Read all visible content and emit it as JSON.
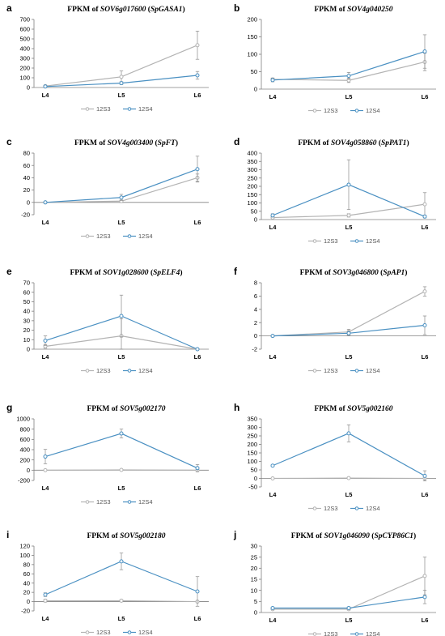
{
  "colors": {
    "s3": "#b3b3b3",
    "s4": "#4a90c2",
    "axis": "#808080",
    "error": "#8c8c8c"
  },
  "chart_data": [
    {
      "panel": "a",
      "type": "line",
      "title_prefix": "FPKM of ",
      "gene": "SOV6g017600",
      "alias": "SpGASA1",
      "categories": [
        "L4",
        "L5",
        "L6"
      ],
      "ylim": [
        0,
        700
      ],
      "yticks": [
        0,
        100,
        200,
        300,
        400,
        500,
        600,
        700
      ],
      "series": [
        {
          "name": "12S3",
          "values": [
            15,
            110,
            435
          ],
          "errors": [
            8,
            60,
            145
          ]
        },
        {
          "name": "12S4",
          "values": [
            10,
            45,
            125
          ],
          "errors": [
            5,
            15,
            40
          ]
        }
      ]
    },
    {
      "panel": "b",
      "type": "line",
      "title_prefix": "FPKM of ",
      "gene": "SOV4g040250",
      "alias": "",
      "categories": [
        "L4",
        "L5",
        "L6"
      ],
      "ylim": [
        0,
        200
      ],
      "yticks": [
        0,
        50,
        100,
        150,
        200
      ],
      "series": [
        {
          "name": "12S3",
          "values": [
            28,
            25,
            78
          ],
          "errors": [
            4,
            6,
            25
          ]
        },
        {
          "name": "12S4",
          "values": [
            26,
            38,
            108
          ],
          "errors": [
            5,
            10,
            48
          ]
        }
      ]
    },
    {
      "panel": "c",
      "type": "line",
      "title_prefix": "FPKM of ",
      "gene": "SOV4g003400",
      "alias": "SpFT",
      "categories": [
        "L4",
        "L5",
        "L6"
      ],
      "ylim": [
        -20,
        80
      ],
      "yticks": [
        -20,
        0,
        20,
        40,
        60,
        80
      ],
      "series": [
        {
          "name": "12S3",
          "values": [
            0,
            2,
            40
          ],
          "errors": [
            0,
            2,
            6
          ]
        },
        {
          "name": "12S4",
          "values": [
            0,
            8,
            54
          ],
          "errors": [
            0,
            5,
            21
          ]
        }
      ]
    },
    {
      "panel": "d",
      "type": "line",
      "title_prefix": "FPKM of ",
      "gene": "SOV4g058860",
      "alias": "SpPAT1",
      "categories": [
        "L4",
        "L5",
        "L6"
      ],
      "ylim": [
        0,
        400
      ],
      "yticks": [
        0,
        50,
        100,
        150,
        200,
        250,
        300,
        350,
        400
      ],
      "series": [
        {
          "name": "12S3",
          "values": [
            12,
            25,
            92
          ],
          "errors": [
            5,
            10,
            70
          ]
        },
        {
          "name": "12S4",
          "values": [
            25,
            210,
            18
          ],
          "errors": [
            10,
            150,
            8
          ]
        }
      ]
    },
    {
      "panel": "e",
      "type": "line",
      "title_prefix": "FPKM of ",
      "gene": "SOV1g028600",
      "alias": "SpELF4",
      "categories": [
        "L4",
        "L5",
        "L6"
      ],
      "ylim": [
        0,
        70
      ],
      "yticks": [
        0,
        10,
        20,
        30,
        40,
        50,
        60,
        70
      ],
      "series": [
        {
          "name": "12S3",
          "values": [
            3,
            14,
            0
          ],
          "errors": [
            2,
            18,
            0
          ]
        },
        {
          "name": "12S4",
          "values": [
            9,
            35,
            0
          ],
          "errors": [
            5,
            22,
            0
          ]
        }
      ]
    },
    {
      "panel": "f",
      "type": "line",
      "title_prefix": "FPKM of ",
      "gene": "SOV3g046800",
      "alias": "SpAP1",
      "categories": [
        "L4",
        "L5",
        "L6"
      ],
      "ylim": [
        -2,
        8
      ],
      "yticks": [
        -2,
        0,
        2,
        4,
        6,
        8
      ],
      "series": [
        {
          "name": "12S3",
          "values": [
            0,
            0.6,
            6.7
          ],
          "errors": [
            0,
            0.4,
            0.7
          ]
        },
        {
          "name": "12S4",
          "values": [
            0,
            0.4,
            1.6
          ],
          "errors": [
            0,
            0.3,
            1.4
          ]
        }
      ]
    },
    {
      "panel": "g",
      "type": "line",
      "title_prefix": "FPKM of ",
      "gene": "SOV5g002170",
      "alias": "",
      "categories": [
        "L4",
        "L5",
        "L6"
      ],
      "ylim": [
        -200,
        1000
      ],
      "yticks": [
        -200,
        0,
        200,
        400,
        600,
        800,
        1000
      ],
      "series": [
        {
          "name": "12S3",
          "values": [
            0,
            5,
            0
          ],
          "errors": [
            0,
            5,
            0
          ]
        },
        {
          "name": "12S4",
          "values": [
            265,
            715,
            40
          ],
          "errors": [
            140,
            85,
            70
          ]
        }
      ]
    },
    {
      "panel": "h",
      "type": "line",
      "title_prefix": "FPKM of ",
      "gene": "SOV5g002160",
      "alias": "",
      "categories": [
        "L4",
        "L5",
        "L6"
      ],
      "ylim": [
        -50,
        350
      ],
      "yticks": [
        -50,
        0,
        50,
        100,
        150,
        200,
        250,
        300,
        350
      ],
      "series": [
        {
          "name": "12S3",
          "values": [
            0,
            2,
            0
          ],
          "errors": [
            0,
            2,
            0
          ]
        },
        {
          "name": "12S4",
          "values": [
            75,
            265,
            15
          ],
          "errors": [
            5,
            50,
            30
          ]
        }
      ]
    },
    {
      "panel": "i",
      "type": "line",
      "title_prefix": "FPKM of ",
      "gene": "SOV5g002180",
      "alias": "",
      "categories": [
        "L4",
        "L5",
        "L6"
      ],
      "ylim": [
        -20,
        120
      ],
      "yticks": [
        -20,
        0,
        20,
        40,
        60,
        80,
        100,
        120
      ],
      "series": [
        {
          "name": "12S3",
          "values": [
            2,
            2,
            0
          ],
          "errors": [
            3,
            2,
            0
          ]
        },
        {
          "name": "12S4",
          "values": [
            15,
            87,
            22
          ],
          "errors": [
            4,
            18,
            32
          ]
        }
      ]
    },
    {
      "panel": "j",
      "type": "line",
      "title_prefix": "FPKM of ",
      "gene": "SOV1g046090",
      "alias": "SpCYP86C1",
      "categories": [
        "L4",
        "L5",
        "L6"
      ],
      "ylim": [
        0,
        30
      ],
      "yticks": [
        0,
        5,
        10,
        15,
        20,
        25,
        30
      ],
      "series": [
        {
          "name": "12S3",
          "values": [
            1.5,
            1.5,
            16.5
          ],
          "errors": [
            0.3,
            0.4,
            8.5
          ]
        },
        {
          "name": "12S4",
          "values": [
            2,
            2,
            7
          ],
          "errors": [
            0.3,
            0.5,
            3
          ]
        }
      ]
    }
  ]
}
